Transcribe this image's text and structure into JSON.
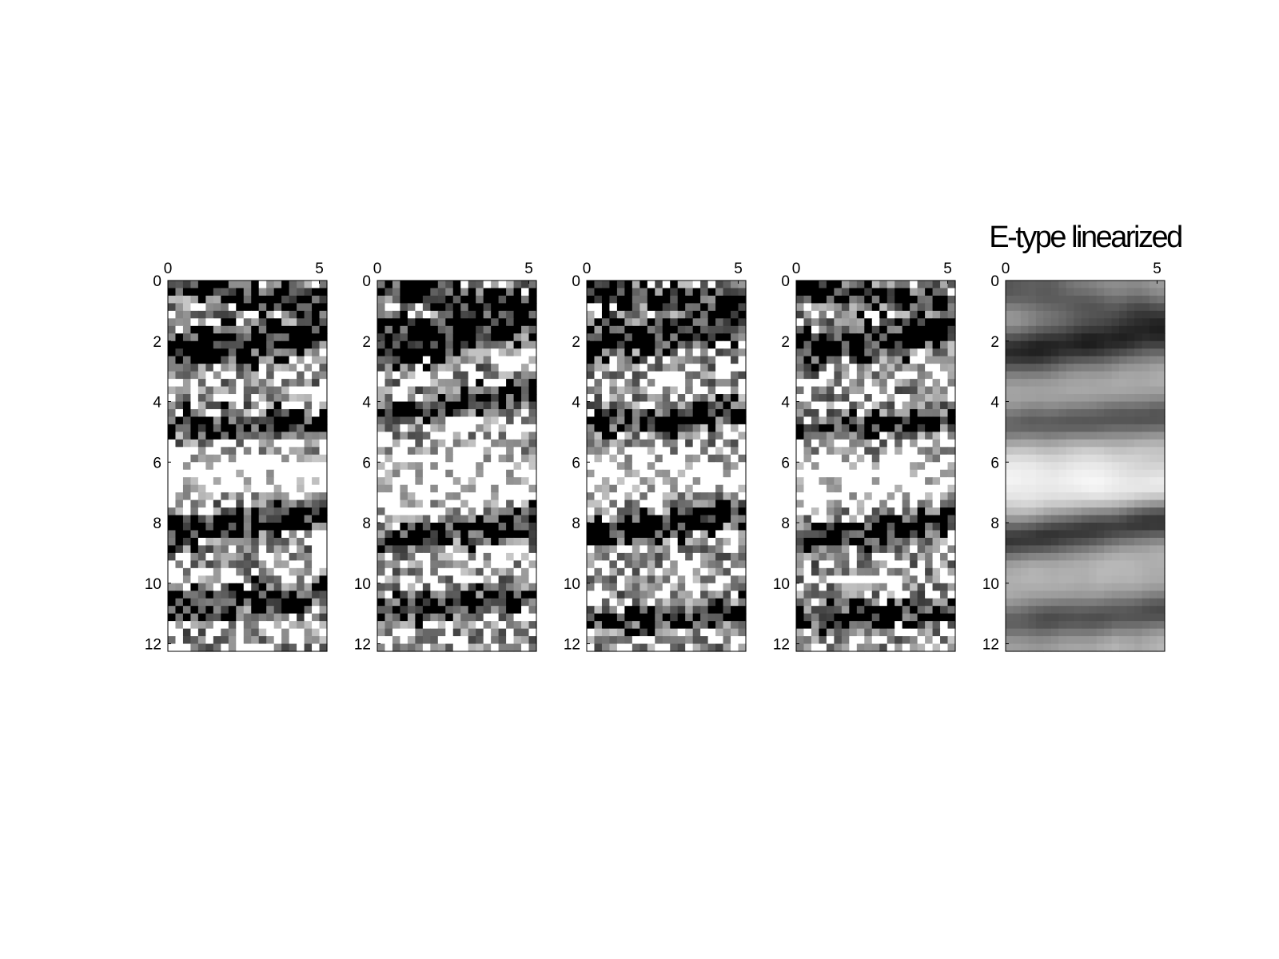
{
  "figure": {
    "background": "#ffffff",
    "colormap": "gray",
    "panel_count": 5
  },
  "chart_data": [
    {
      "type": "heatmap",
      "title": "",
      "xlabel": "",
      "ylabel": "",
      "xlim": [
        0,
        5.25
      ],
      "ylim": [
        0,
        12.25
      ],
      "y_reversed": true,
      "x_axis_location": "top",
      "xticks": [
        0,
        5
      ],
      "yticks": [
        0,
        2,
        4,
        6,
        8,
        10,
        12
      ],
      "grid": false,
      "colormap": "gray",
      "value_range": [
        0,
        1
      ],
      "n_cols": 21,
      "n_rows": 49,
      "style": "noisy",
      "bands": [
        {
          "y0": 0.1,
          "slope": -0.25,
          "width": 0.45,
          "value": 0.05
        },
        {
          "y0": 2.3,
          "slope": 0.18,
          "width": 0.7,
          "value": 0.02
        },
        {
          "y0": 4.9,
          "slope": 0.05,
          "width": 0.55,
          "value": 0.08
        },
        {
          "y0": 6.3,
          "slope": -0.12,
          "width": 1.1,
          "value": 0.97
        },
        {
          "y0": 8.3,
          "slope": 0.22,
          "width": 0.6,
          "value": 0.03
        },
        {
          "y0": 10.8,
          "slope": 0.15,
          "width": 0.55,
          "value": 0.1
        }
      ]
    },
    {
      "type": "heatmap",
      "title": "",
      "xlabel": "",
      "ylabel": "",
      "xlim": [
        0,
        5.25
      ],
      "ylim": [
        0,
        12.25
      ],
      "y_reversed": true,
      "x_axis_location": "top",
      "xticks": [
        0,
        5
      ],
      "yticks": [
        0,
        2,
        4,
        6,
        8,
        10,
        12
      ],
      "grid": false,
      "colormap": "gray",
      "value_range": [
        0,
        1
      ],
      "n_cols": 21,
      "n_rows": 49,
      "style": "noisy",
      "bands": [
        {
          "y0": 0.2,
          "slope": -0.2,
          "width": 0.5,
          "value": 0.05
        },
        {
          "y0": 2.2,
          "slope": 0.3,
          "width": 0.8,
          "value": 0.02
        },
        {
          "y0": 4.4,
          "slope": 0.25,
          "width": 0.45,
          "value": 0.06
        },
        {
          "y0": 6.6,
          "slope": -0.1,
          "width": 1.0,
          "value": 0.97
        },
        {
          "y0": 8.7,
          "slope": 0.28,
          "width": 0.55,
          "value": 0.03
        },
        {
          "y0": 11.0,
          "slope": 0.2,
          "width": 0.5,
          "value": 0.08
        }
      ]
    },
    {
      "type": "heatmap",
      "title": "",
      "xlabel": "",
      "ylabel": "",
      "xlim": [
        0,
        5.25
      ],
      "ylim": [
        0,
        12.25
      ],
      "y_reversed": true,
      "x_axis_location": "top",
      "xticks": [
        0,
        5
      ],
      "yticks": [
        0,
        2,
        4,
        6,
        8,
        10,
        12
      ],
      "grid": false,
      "colormap": "gray",
      "value_range": [
        0,
        1
      ],
      "n_cols": 21,
      "n_rows": 49,
      "style": "noisy",
      "bands": [
        {
          "y0": 0.3,
          "slope": -0.2,
          "width": 0.45,
          "value": 0.06
        },
        {
          "y0": 2.1,
          "slope": 0.25,
          "width": 0.7,
          "value": 0.02
        },
        {
          "y0": 4.8,
          "slope": 0.15,
          "width": 0.5,
          "value": 0.1
        },
        {
          "y0": 6.4,
          "slope": -0.1,
          "width": 1.0,
          "value": 0.97
        },
        {
          "y0": 8.4,
          "slope": 0.25,
          "width": 0.6,
          "value": 0.03
        },
        {
          "y0": 11.3,
          "slope": 0.1,
          "width": 0.5,
          "value": 0.1
        }
      ]
    },
    {
      "type": "heatmap",
      "title": "",
      "xlabel": "",
      "ylabel": "",
      "xlim": [
        0,
        5.25
      ],
      "ylim": [
        0,
        12.25
      ],
      "y_reversed": true,
      "x_axis_location": "top",
      "xticks": [
        0,
        5
      ],
      "yticks": [
        0,
        2,
        4,
        6,
        8,
        10,
        12
      ],
      "grid": false,
      "colormap": "gray",
      "value_range": [
        0,
        1
      ],
      "n_cols": 21,
      "n_rows": 49,
      "style": "noisy",
      "bands": [
        {
          "y0": 0.3,
          "slope": -0.15,
          "width": 0.5,
          "value": 0.06
        },
        {
          "y0": 2.3,
          "slope": 0.2,
          "width": 0.65,
          "value": 0.03
        },
        {
          "y0": 5.0,
          "slope": 0.12,
          "width": 0.5,
          "value": 0.08
        },
        {
          "y0": 6.5,
          "slope": -0.1,
          "width": 1.0,
          "value": 0.97
        },
        {
          "y0": 8.6,
          "slope": 0.2,
          "width": 0.55,
          "value": 0.03
        },
        {
          "y0": 11.2,
          "slope": 0.12,
          "width": 0.5,
          "value": 0.1
        }
      ]
    },
    {
      "type": "heatmap",
      "title": "E-type linearized",
      "xlabel": "",
      "ylabel": "",
      "xlim": [
        0,
        5.25
      ],
      "ylim": [
        0,
        12.25
      ],
      "y_reversed": true,
      "x_axis_location": "top",
      "xticks": [
        0,
        5
      ],
      "yticks": [
        0,
        2,
        4,
        6,
        8,
        10,
        12
      ],
      "grid": false,
      "colormap": "gray",
      "value_range": [
        0,
        1
      ],
      "n_cols": 21,
      "n_rows": 49,
      "style": "smooth",
      "bands": [
        {
          "y0": 0.4,
          "slope": -0.2,
          "width": 0.6,
          "value": 0.3
        },
        {
          "y0": 2.4,
          "slope": 0.22,
          "width": 0.8,
          "value": 0.05
        },
        {
          "y0": 4.8,
          "slope": 0.1,
          "width": 0.55,
          "value": 0.2
        },
        {
          "y0": 6.5,
          "slope": -0.1,
          "width": 1.2,
          "value": 0.95
        },
        {
          "y0": 8.6,
          "slope": 0.22,
          "width": 0.6,
          "value": 0.08
        },
        {
          "y0": 11.3,
          "slope": 0.12,
          "width": 0.55,
          "value": 0.2
        }
      ]
    }
  ]
}
